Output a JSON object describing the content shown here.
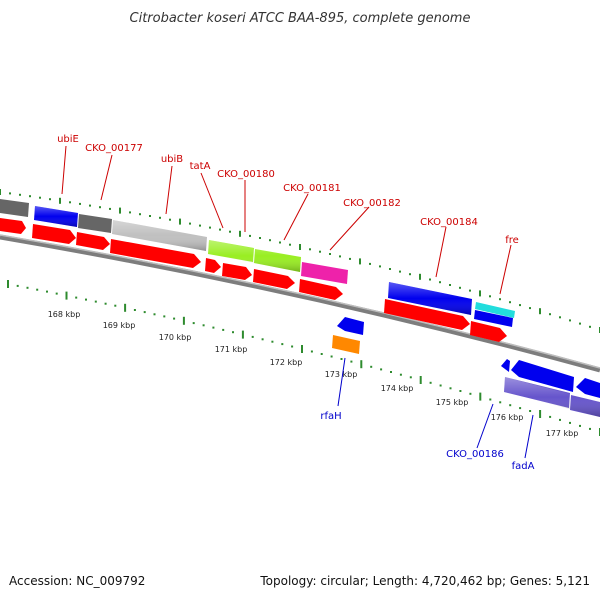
{
  "title": "Citrobacter koseri ATCC BAA-895, complete genome",
  "footer": {
    "accession": "Accession: NC_009792",
    "topology": "Topology: circular; Length: 4,720,462 bp; Genes: 5,121"
  },
  "colors": {
    "backbone": "#808080",
    "forward_label": "#cc0000",
    "reverse_label": "#0000cc",
    "tick": "#2e8b2e",
    "cds": "#ff0000",
    "gene_blue": "#0000ee",
    "gene_dark_gray": "#666666",
    "gene_light_gray": "#c0c0c0",
    "gene_lime": "#99ee22",
    "gene_magenta": "#ee22aa",
    "gene_cyan": "#22dddd",
    "gene_orange": "#ff8800",
    "gene_slate": "#6655cc"
  },
  "forward_labels": [
    "ubiE",
    "CKO_00177",
    "ubiB",
    "tatA",
    "CKO_00180",
    "CKO_00181",
    "CKO_00182",
    "CKO_00184",
    "fre"
  ],
  "reverse_labels": [
    "rfaH",
    "CKO_00186",
    "fadA"
  ],
  "scale_labels": [
    "168 kbp",
    "169 kbp",
    "170 kbp",
    "171 kbp",
    "172 kbp",
    "173 kbp",
    "174 kbp",
    "175 kbp",
    "176 kbp",
    "177 kbp"
  ]
}
